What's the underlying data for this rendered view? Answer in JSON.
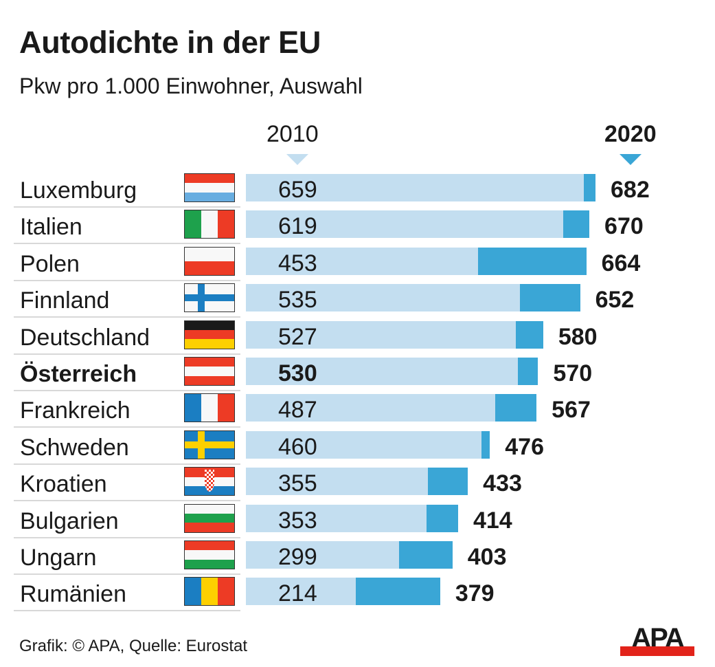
{
  "header": {
    "title": "Autodichte in der EU",
    "subtitle": "Pkw pro 1.000 Einwohner, Auswahl"
  },
  "legend": {
    "year_a": "2010",
    "year_b": "2020"
  },
  "colors": {
    "bar_2010": "#c3def0",
    "bar_2020": "#3aa6d6",
    "text": "#1a1a1a",
    "logo_red": "#e2231a"
  },
  "footer": {
    "credit": "Grafik: © APA, Quelle: Eurostat",
    "logo_text": "APA"
  },
  "chart_data": {
    "type": "bar",
    "orientation": "horizontal",
    "title": "Autodichte in der EU",
    "subtitle": "Pkw pro 1.000 Einwohner, Auswahl",
    "xlabel": "",
    "ylabel": "",
    "xlim": [
      0,
      682
    ],
    "grid": false,
    "legend": "top",
    "categories": [
      "Luxemburg",
      "Italien",
      "Polen",
      "Finnland",
      "Deutschland",
      "Österreich",
      "Frankreich",
      "Schweden",
      "Kroatien",
      "Bulgarien",
      "Ungarn",
      "Rumänien"
    ],
    "highlight": "Österreich",
    "flags": [
      "luxembourg",
      "italy",
      "poland",
      "finland",
      "germany",
      "austria",
      "france",
      "sweden",
      "croatia",
      "bulgaria",
      "hungary",
      "romania"
    ],
    "series": [
      {
        "name": "2010",
        "values": [
          659,
          619,
          453,
          535,
          527,
          530,
          487,
          460,
          355,
          353,
          299,
          214
        ]
      },
      {
        "name": "2020",
        "values": [
          682,
          670,
          664,
          652,
          580,
          570,
          567,
          476,
          433,
          414,
          403,
          379
        ]
      }
    ],
    "source": "Eurostat"
  }
}
